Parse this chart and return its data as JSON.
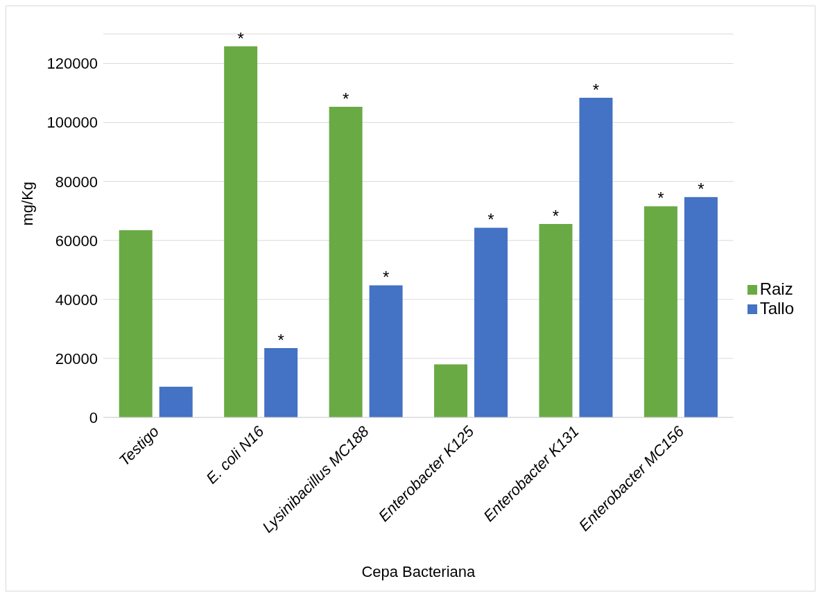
{
  "chart_data": {
    "type": "bar",
    "xlabel": "Cepa Bacteriana",
    "ylabel": "mg/Kg",
    "categories": [
      "Testigo",
      "E. coli N16",
      "Lysinibacillus MC188",
      "Enterobacter K125",
      "Enterobacter K131",
      "Enterobacter MC156"
    ],
    "series": [
      {
        "name": "Raiz",
        "color": "#6aaa45",
        "values": [
          63500,
          125800,
          105300,
          18000,
          65600,
          71600
        ],
        "value_labels": [
          null,
          "*",
          "*",
          null,
          "*",
          "*"
        ]
      },
      {
        "name": "Tallo",
        "color": "#4472c4",
        "values": [
          10400,
          23500,
          44800,
          64300,
          108400,
          74700
        ],
        "value_labels": [
          null,
          "*",
          "*",
          "*",
          "*",
          "*"
        ]
      }
    ],
    "ylim": [
      0,
      130000
    ],
    "yticks": [
      0,
      20000,
      40000,
      60000,
      80000,
      100000,
      120000
    ],
    "grid": "y",
    "legend": "right"
  }
}
